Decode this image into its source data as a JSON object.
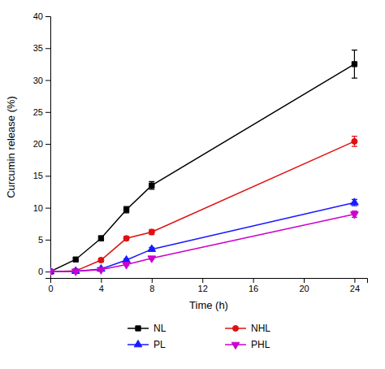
{
  "chart_data": {
    "type": "line",
    "xlabel": "Time (h)",
    "ylabel": "Curcumin release (%)",
    "x": [
      0,
      2,
      4,
      6,
      8,
      24
    ],
    "xlim": [
      0,
      25
    ],
    "ylim": [
      -1,
      40
    ],
    "xticks": [
      0,
      4,
      8,
      12,
      16,
      20,
      24
    ],
    "yticks": [
      0,
      5,
      10,
      15,
      20,
      25,
      30,
      35,
      40
    ],
    "grid": false,
    "legend": "bottom",
    "series": [
      {
        "name": "NL",
        "color": "#000000",
        "marker": "square",
        "line_style": "solid",
        "values": [
          0,
          1.9,
          5.2,
          9.7,
          13.5,
          32.5
        ],
        "errors": [
          0,
          0.3,
          0.4,
          0.5,
          0.6,
          2.2
        ]
      },
      {
        "name": "NHL",
        "color": "#e01010",
        "marker": "circle",
        "line_style": "solid",
        "values": [
          0,
          0.1,
          1.8,
          5.2,
          6.2,
          20.4
        ],
        "errors": [
          0,
          0.15,
          0.3,
          0.3,
          0.4,
          0.8
        ]
      },
      {
        "name": "PL",
        "color": "#1a1aff",
        "marker": "triangle-up",
        "line_style": "solid",
        "values": [
          0,
          0.05,
          0.4,
          1.8,
          3.5,
          10.8
        ],
        "errors": [
          0,
          0.05,
          0.1,
          0.2,
          0.3,
          0.5
        ]
      },
      {
        "name": "PHL",
        "color": "#cc00cc",
        "marker": "triangle-down",
        "line_style": "solid",
        "values": [
          0,
          0.05,
          0.3,
          1.1,
          2.1,
          9.0
        ],
        "errors": [
          0,
          0.05,
          0.1,
          0.15,
          0.2,
          0.5
        ]
      }
    ]
  }
}
